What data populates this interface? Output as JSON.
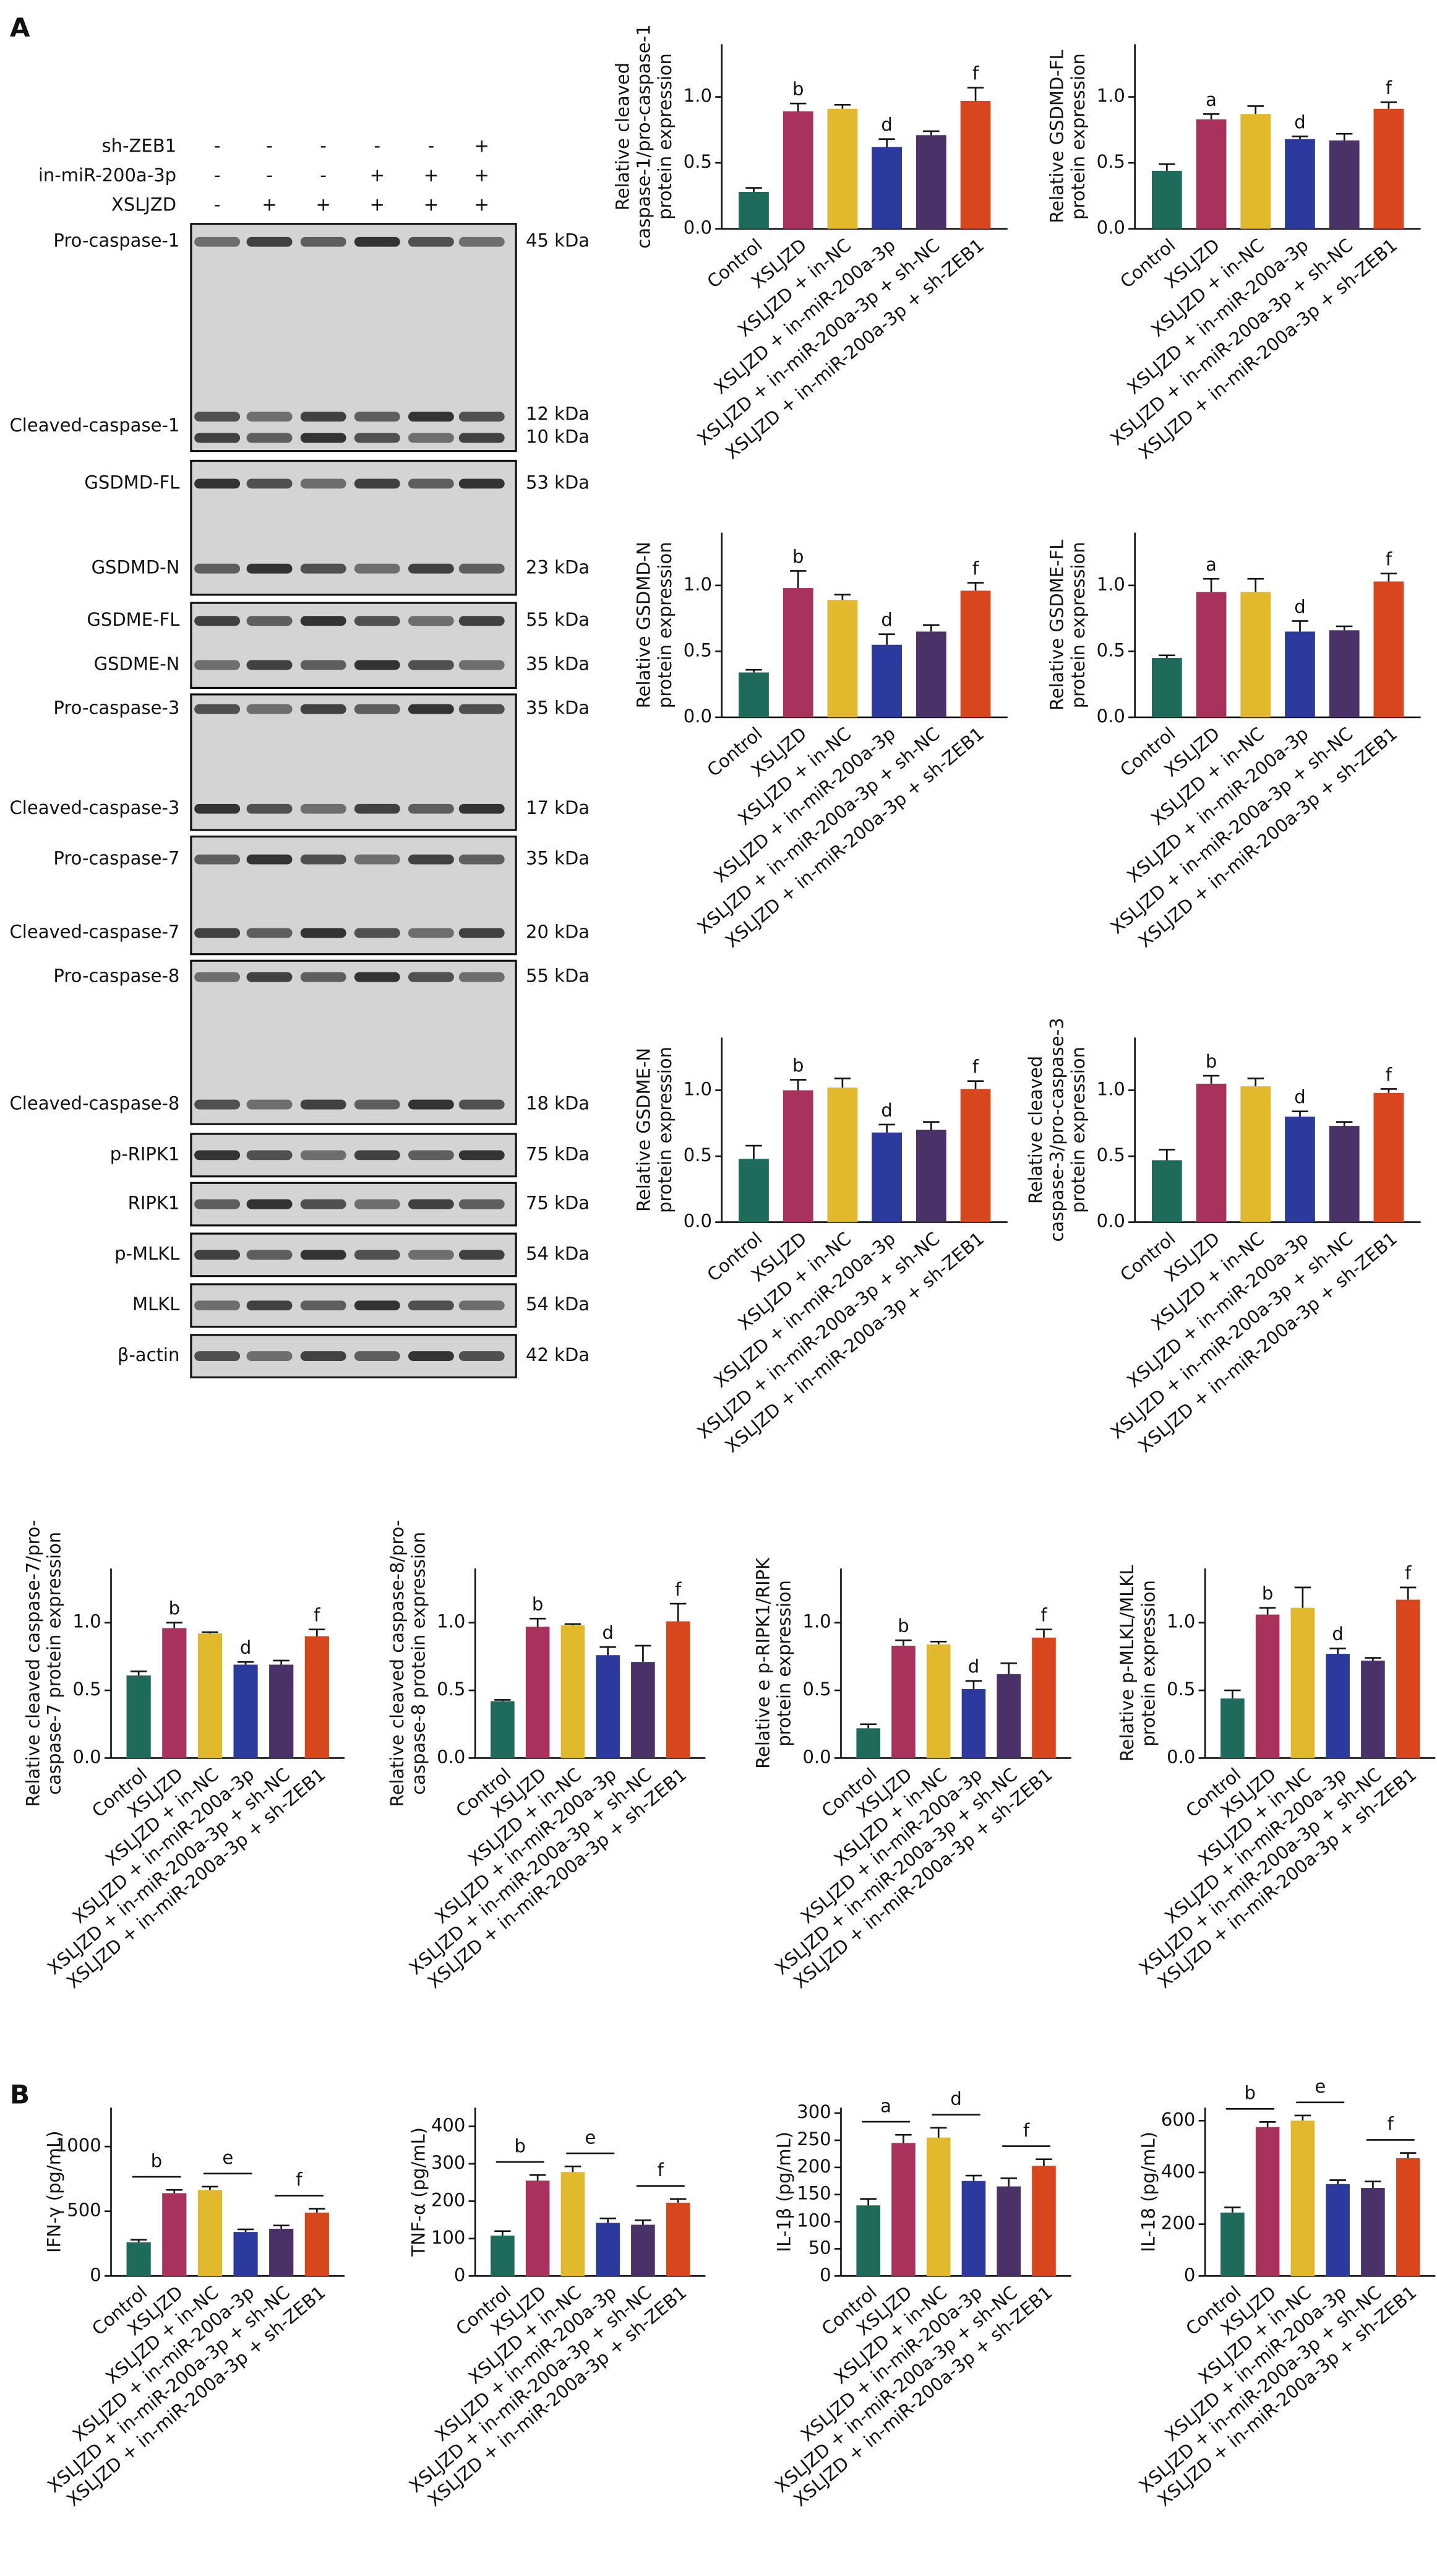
{
  "panel_labels": [
    "A",
    "B"
  ],
  "blot": {
    "treatments": [
      {
        "label": "sh-ZEB1",
        "lanes": [
          "-",
          "-",
          "-",
          "-",
          "-",
          "+"
        ]
      },
      {
        "label": "in-miR-200a-3p",
        "lanes": [
          "-",
          "-",
          "-",
          "+",
          "+",
          "+"
        ]
      },
      {
        "label": "XSLJZD",
        "lanes": [
          "-",
          "+",
          "+",
          "+",
          "+",
          "+"
        ]
      }
    ],
    "bands": [
      {
        "label": "Pro-caspase-1",
        "markers": [
          "45 kDa"
        ]
      },
      {
        "label": "Cleaved-caspase-1",
        "markers": [
          "12 kDa",
          "10 kDa"
        ]
      },
      {
        "label": "GSDMD-FL",
        "markers": [
          "53 kDa"
        ]
      },
      {
        "label": "GSDMD-N",
        "markers": [
          "23 kDa"
        ]
      },
      {
        "label": "GSDME-FL",
        "markers": [
          "55 kDa"
        ]
      },
      {
        "label": "GSDME-N",
        "markers": [
          "35 kDa"
        ]
      },
      {
        "label": "Pro-caspase-3",
        "markers": [
          "35 kDa"
        ]
      },
      {
        "label": "Cleaved-caspase-3",
        "markers": [
          "17 kDa"
        ]
      },
      {
        "label": "Pro-caspase-7",
        "markers": [
          "35 kDa"
        ]
      },
      {
        "label": "Cleaved-caspase-7",
        "markers": [
          "20 kDa"
        ]
      },
      {
        "label": "Pro-caspase-8",
        "markers": [
          "55 kDa"
        ]
      },
      {
        "label": "Cleaved-caspase-8",
        "markers": [
          "18 kDa"
        ]
      },
      {
        "label": "p-RIPK1",
        "markers": [
          "75 kDa"
        ]
      },
      {
        "label": "RIPK1",
        "markers": [
          "75 kDa"
        ]
      },
      {
        "label": "p-MLKL",
        "markers": [
          "54 kDa"
        ]
      },
      {
        "label": "MLKL",
        "markers": [
          "54 kDa"
        ]
      },
      {
        "label": "β-actin",
        "markers": [
          "42 kDa"
        ]
      }
    ]
  },
  "chart_data": [
    {
      "type": "bar",
      "ylabel": [
        "Relative cleaved",
        "caspase-1/pro-caspase-1",
        "protein expression"
      ],
      "categories": [
        "Control",
        "XSLJZD",
        "XSLJZD + in-NC",
        "XSLJZD + in-miR-200a-3p",
        "XSLJZD + in-miR-200a-3p + sh-NC",
        "XSLJZD + in-miR-200a-3p + sh-ZEB1"
      ],
      "values": [
        0.28,
        0.89,
        0.91,
        0.62,
        0.71,
        0.97
      ],
      "errors": [
        0.03,
        0.06,
        0.03,
        0.06,
        0.03,
        0.1
      ],
      "colors": [
        "#1e6b5c",
        "#a8325c",
        "#e2b82c",
        "#2b3a9c",
        "#4a3268",
        "#d8461e"
      ],
      "significance": [
        null,
        "b",
        null,
        "d",
        null,
        "f"
      ],
      "significance_style": "letter",
      "ylim": [
        0,
        1.4
      ],
      "yticks": [
        {
          "value": 0,
          "label": "0.0"
        },
        {
          "value": 0.5,
          "label": "0.5"
        },
        {
          "value": 1,
          "label": "1.0"
        }
      ]
    },
    {
      "type": "bar",
      "ylabel": [
        "Relative GSDMD-FL",
        "protein expression"
      ],
      "categories": [
        "Control",
        "XSLJZD",
        "XSLJZD + in-NC",
        "XSLJZD + in-miR-200a-3p",
        "XSLJZD + in-miR-200a-3p + sh-NC",
        "XSLJZD + in-miR-200a-3p + sh-ZEB1"
      ],
      "values": [
        0.44,
        0.83,
        0.87,
        0.68,
        0.67,
        0.91
      ],
      "errors": [
        0.05,
        0.04,
        0.06,
        0.02,
        0.05,
        0.05
      ],
      "colors": [
        "#1e6b5c",
        "#a8325c",
        "#e2b82c",
        "#2b3a9c",
        "#4a3268",
        "#d8461e"
      ],
      "significance": [
        null,
        "a",
        null,
        "d",
        null,
        "f"
      ],
      "significance_style": "letter",
      "ylim": [
        0,
        1.4
      ],
      "yticks": [
        {
          "value": 0,
          "label": "0.0"
        },
        {
          "value": 0.5,
          "label": "0.5"
        },
        {
          "value": 1,
          "label": "1.0"
        }
      ]
    },
    {
      "type": "bar",
      "ylabel": [
        "Relative GSDMD-N",
        "protein expression"
      ],
      "categories": [
        "Control",
        "XSLJZD",
        "XSLJZD + in-NC",
        "XSLJZD + in-miR-200a-3p",
        "XSLJZD + in-miR-200a-3p + sh-NC",
        "XSLJZD + in-miR-200a-3p + sh-ZEB1"
      ],
      "values": [
        0.34,
        0.98,
        0.89,
        0.55,
        0.65,
        0.96
      ],
      "errors": [
        0.02,
        0.13,
        0.04,
        0.08,
        0.05,
        0.06
      ],
      "colors": [
        "#1e6b5c",
        "#a8325c",
        "#e2b82c",
        "#2b3a9c",
        "#4a3268",
        "#d8461e"
      ],
      "significance": [
        null,
        "b",
        null,
        "d",
        null,
        "f"
      ],
      "significance_style": "letter",
      "ylim": [
        0,
        1.4
      ],
      "yticks": [
        {
          "value": 0,
          "label": "0.0"
        },
        {
          "value": 0.5,
          "label": "0.5"
        },
        {
          "value": 1,
          "label": "1.0"
        }
      ]
    },
    {
      "type": "bar",
      "ylabel": [
        "Relative GSDME-FL",
        "protein expression"
      ],
      "categories": [
        "Control",
        "XSLJZD",
        "XSLJZD + in-NC",
        "XSLJZD + in-miR-200a-3p",
        "XSLJZD + in-miR-200a-3p + sh-NC",
        "XSLJZD + in-miR-200a-3p + sh-ZEB1"
      ],
      "values": [
        0.45,
        0.95,
        0.95,
        0.65,
        0.66,
        1.03
      ],
      "errors": [
        0.02,
        0.1,
        0.1,
        0.08,
        0.03,
        0.06
      ],
      "colors": [
        "#1e6b5c",
        "#a8325c",
        "#e2b82c",
        "#2b3a9c",
        "#4a3268",
        "#d8461e"
      ],
      "significance": [
        null,
        "a",
        null,
        "d",
        null,
        "f"
      ],
      "significance_style": "letter",
      "ylim": [
        0,
        1.4
      ],
      "yticks": [
        {
          "value": 0,
          "label": "0.0"
        },
        {
          "value": 0.5,
          "label": "0.5"
        },
        {
          "value": 1,
          "label": "1.0"
        }
      ]
    },
    {
      "type": "bar",
      "ylabel": [
        "Relative GSDME-N",
        "protein expression"
      ],
      "categories": [
        "Control",
        "XSLJZD",
        "XSLJZD + in-NC",
        "XSLJZD + in-miR-200a-3p",
        "XSLJZD + in-miR-200a-3p + sh-NC",
        "XSLJZD + in-miR-200a-3p + sh-ZEB1"
      ],
      "values": [
        0.48,
        1.0,
        1.02,
        0.68,
        0.7,
        1.01
      ],
      "errors": [
        0.1,
        0.08,
        0.07,
        0.06,
        0.06,
        0.06
      ],
      "colors": [
        "#1e6b5c",
        "#a8325c",
        "#e2b82c",
        "#2b3a9c",
        "#4a3268",
        "#d8461e"
      ],
      "significance": [
        null,
        "b",
        null,
        "d",
        null,
        "f"
      ],
      "significance_style": "letter",
      "ylim": [
        0,
        1.4
      ],
      "yticks": [
        {
          "value": 0,
          "label": "0.0"
        },
        {
          "value": 0.5,
          "label": "0.5"
        },
        {
          "value": 1,
          "label": "1.0"
        }
      ]
    },
    {
      "type": "bar",
      "ylabel": [
        "Relative cleaved",
        "caspase-3/pro-caspase-3",
        "protein expression"
      ],
      "categories": [
        "Control",
        "XSLJZD",
        "XSLJZD + in-NC",
        "XSLJZD + in-miR-200a-3p",
        "XSLJZD + in-miR-200a-3p + sh-NC",
        "XSLJZD + in-miR-200a-3p + sh-ZEB1"
      ],
      "values": [
        0.47,
        1.05,
        1.03,
        0.8,
        0.73,
        0.98
      ],
      "errors": [
        0.08,
        0.06,
        0.06,
        0.04,
        0.03,
        0.03
      ],
      "colors": [
        "#1e6b5c",
        "#a8325c",
        "#e2b82c",
        "#2b3a9c",
        "#4a3268",
        "#d8461e"
      ],
      "significance": [
        null,
        "b",
        null,
        "d",
        null,
        "f"
      ],
      "significance_style": "letter",
      "ylim": [
        0,
        1.4
      ],
      "yticks": [
        {
          "value": 0,
          "label": "0.0"
        },
        {
          "value": 0.5,
          "label": "0.5"
        },
        {
          "value": 1,
          "label": "1.0"
        }
      ]
    },
    {
      "type": "bar",
      "ylabel": [
        "Relative cleaved caspase-7/pro-",
        "caspase-7 protein expression"
      ],
      "categories": [
        "Control",
        "XSLJZD",
        "XSLJZD + in-NC",
        "XSLJZD + in-miR-200a-3p",
        "XSLJZD + in-miR-200a-3p + sh-NC",
        "XSLJZD + in-miR-200a-3p + sh-ZEB1"
      ],
      "values": [
        0.61,
        0.96,
        0.92,
        0.69,
        0.69,
        0.9
      ],
      "errors": [
        0.03,
        0.04,
        0.01,
        0.02,
        0.03,
        0.05
      ],
      "colors": [
        "#1e6b5c",
        "#a8325c",
        "#e2b82c",
        "#2b3a9c",
        "#4a3268",
        "#d8461e"
      ],
      "significance": [
        null,
        "b",
        null,
        "d",
        null,
        "f"
      ],
      "significance_style": "letter",
      "ylim": [
        0,
        1.4
      ],
      "yticks": [
        {
          "value": 0,
          "label": "0.0"
        },
        {
          "value": 0.5,
          "label": "0.5"
        },
        {
          "value": 1,
          "label": "1.0"
        }
      ]
    },
    {
      "type": "bar",
      "ylabel": [
        "Relative cleaved caspase-8/pro-",
        "caspase-8 protein expression"
      ],
      "categories": [
        "Control",
        "XSLJZD",
        "XSLJZD + in-NC",
        "XSLJZD + in-miR-200a-3p",
        "XSLJZD + in-miR-200a-3p + sh-NC",
        "XSLJZD + in-miR-200a-3p + sh-ZEB1"
      ],
      "values": [
        0.42,
        0.97,
        0.98,
        0.76,
        0.71,
        1.01
      ],
      "errors": [
        0.01,
        0.06,
        0.01,
        0.06,
        0.12,
        0.13
      ],
      "colors": [
        "#1e6b5c",
        "#a8325c",
        "#e2b82c",
        "#2b3a9c",
        "#4a3268",
        "#d8461e"
      ],
      "significance": [
        null,
        "b",
        null,
        "d",
        null,
        "f"
      ],
      "significance_style": "letter",
      "ylim": [
        0,
        1.4
      ],
      "yticks": [
        {
          "value": 0,
          "label": "0.0"
        },
        {
          "value": 0.5,
          "label": "0.5"
        },
        {
          "value": 1,
          "label": "1.0"
        }
      ]
    },
    {
      "type": "bar",
      "ylabel": [
        "Relative e p-RIPK1/RIPK",
        "protein expression"
      ],
      "categories": [
        "Control",
        "XSLJZD",
        "XSLJZD + in-NC",
        "XSLJZD + in-miR-200a-3p",
        "XSLJZD + in-miR-200a-3p + sh-NC",
        "XSLJZD + in-miR-200a-3p + sh-ZEB1"
      ],
      "values": [
        0.22,
        0.83,
        0.84,
        0.51,
        0.62,
        0.89
      ],
      "errors": [
        0.03,
        0.04,
        0.02,
        0.06,
        0.08,
        0.06
      ],
      "colors": [
        "#1e6b5c",
        "#a8325c",
        "#e2b82c",
        "#2b3a9c",
        "#4a3268",
        "#d8461e"
      ],
      "significance": [
        null,
        "b",
        null,
        "d",
        null,
        "f"
      ],
      "significance_style": "letter",
      "ylim": [
        0,
        1.4
      ],
      "yticks": [
        {
          "value": 0,
          "label": "0.0"
        },
        {
          "value": 0.5,
          "label": "0.5"
        },
        {
          "value": 1,
          "label": "1.0"
        }
      ]
    },
    {
      "type": "bar",
      "ylabel": [
        "Relative p-MLKL/MLKL",
        "protein expression"
      ],
      "categories": [
        "Control",
        "XSLJZD",
        "XSLJZD + in-NC",
        "XSLJZD + in-miR-200a-3p",
        "XSLJZD + in-miR-200a-3p + sh-NC",
        "XSLJZD + in-miR-200a-3p + sh-ZEB1"
      ],
      "values": [
        0.44,
        1.06,
        1.11,
        0.77,
        0.72,
        1.17
      ],
      "errors": [
        0.06,
        0.05,
        0.15,
        0.04,
        0.02,
        0.09
      ],
      "colors": [
        "#1e6b5c",
        "#a8325c",
        "#e2b82c",
        "#2b3a9c",
        "#4a3268",
        "#d8461e"
      ],
      "significance": [
        null,
        "b",
        null,
        "d",
        null,
        "f"
      ],
      "significance_style": "letter",
      "ylim": [
        0,
        1.4
      ],
      "yticks": [
        {
          "value": 0,
          "label": "0.0"
        },
        {
          "value": 0.5,
          "label": "0.5"
        },
        {
          "value": 1,
          "label": "1.0"
        }
      ]
    },
    {
      "type": "bar",
      "ylabel": [
        "IFN-γ (pg/mL)"
      ],
      "categories": [
        "Control",
        "XSLJZD",
        "XSLJZD + in-NC",
        "XSLJZD + in-miR-200a-3p",
        "XSLJZD + in-miR-200a-3p + sh-NC",
        "XSLJZD + in-miR-200a-3p + sh-ZEB1"
      ],
      "values": [
        260,
        640,
        665,
        340,
        365,
        490
      ],
      "errors": [
        20,
        25,
        25,
        20,
        25,
        30
      ],
      "colors": [
        "#1e6b5c",
        "#a8325c",
        "#e2b82c",
        "#2b3a9c",
        "#4a3268",
        "#d8461e"
      ],
      "significance": [
        null,
        "b",
        null,
        "e",
        null,
        "f"
      ],
      "significance_style": "bracket",
      "ylim": [
        0,
        1300
      ],
      "yticks": [
        0,
        500,
        1000
      ]
    },
    {
      "type": "bar",
      "ylabel": [
        "TNF-α (pg/mL)"
      ],
      "categories": [
        "Control",
        "XSLJZD",
        "XSLJZD + in-NC",
        "XSLJZD + in-miR-200a-3p",
        "XSLJZD + in-miR-200a-3p + sh-NC",
        "XSLJZD + in-miR-200a-3p + sh-ZEB1"
      ],
      "values": [
        108,
        255,
        278,
        142,
        137,
        196
      ],
      "errors": [
        12,
        15,
        15,
        12,
        12,
        10
      ],
      "colors": [
        "#1e6b5c",
        "#a8325c",
        "#e2b82c",
        "#2b3a9c",
        "#4a3268",
        "#d8461e"
      ],
      "significance": [
        null,
        "b",
        null,
        "e",
        null,
        "f"
      ],
      "significance_style": "bracket",
      "ylim": [
        0,
        450
      ],
      "yticks": [
        0,
        100,
        200,
        300,
        400
      ]
    },
    {
      "type": "bar",
      "ylabel": [
        "IL-1β (pg/mL)"
      ],
      "categories": [
        "Control",
        "XSLJZD",
        "XSLJZD + in-NC",
        "XSLJZD + in-miR-200a-3p",
        "XSLJZD + in-miR-200a-3p + sh-NC",
        "XSLJZD + in-miR-200a-3p + sh-ZEB1"
      ],
      "values": [
        130,
        245,
        255,
        175,
        165,
        203
      ],
      "errors": [
        12,
        15,
        18,
        10,
        15,
        12
      ],
      "colors": [
        "#1e6b5c",
        "#a8325c",
        "#e2b82c",
        "#2b3a9c",
        "#4a3268",
        "#d8461e"
      ],
      "significance": [
        null,
        "a",
        null,
        "d",
        null,
        "f"
      ],
      "significance_style": "bracket",
      "ylim": [
        0,
        310
      ],
      "yticks": [
        0,
        50,
        100,
        150,
        200,
        250,
        300
      ]
    },
    {
      "type": "bar",
      "ylabel": [
        "IL-18 (pg/mL)"
      ],
      "categories": [
        "Control",
        "XSLJZD",
        "XSLJZD + in-NC",
        "XSLJZD + in-miR-200a-3p",
        "XSLJZD + in-miR-200a-3p + sh-NC",
        "XSLJZD + in-miR-200a-3p + sh-ZEB1"
      ],
      "values": [
        245,
        575,
        600,
        355,
        340,
        455
      ],
      "errors": [
        20,
        20,
        20,
        15,
        25,
        20
      ],
      "colors": [
        "#1e6b5c",
        "#a8325c",
        "#e2b82c",
        "#2b3a9c",
        "#4a3268",
        "#d8461e"
      ],
      "significance": [
        null,
        "b",
        null,
        "e",
        null,
        "f"
      ],
      "significance_style": "bracket",
      "ylim": [
        0,
        650
      ],
      "yticks": [
        0,
        200,
        400,
        600
      ]
    }
  ]
}
